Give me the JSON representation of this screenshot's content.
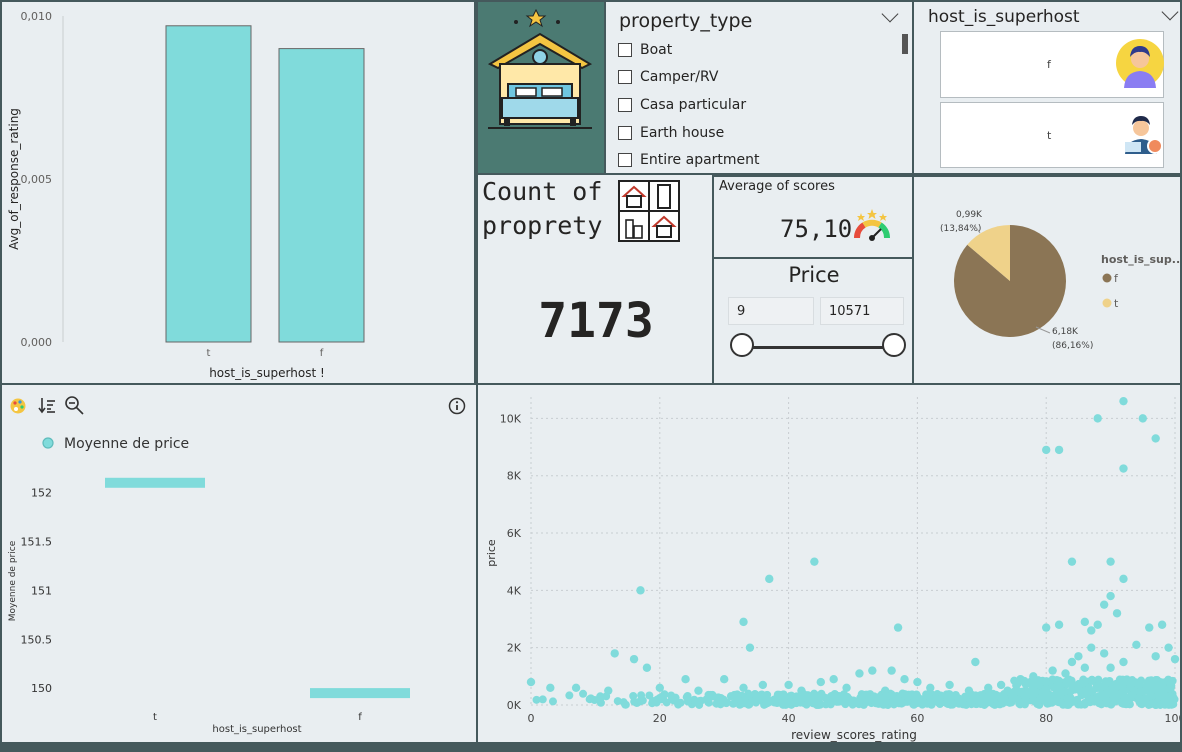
{
  "colors": {
    "teal": "#80dbdb",
    "border": "#45595c",
    "bg": "#e9eef1",
    "pie_f": "#8b7555",
    "pie_t": "#efd28a",
    "house_tile": "#4b7a72"
  },
  "bar_chart": {
    "chart_data": {
      "type": "bar",
      "categories": [
        "t",
        "f"
      ],
      "values": [
        0.0097,
        0.009
      ],
      "xlabel": "host_is_superhost",
      "ylabel": "Avg_of_response_rating",
      "ylim": [
        0,
        0.01
      ],
      "yticks": [
        "0,000",
        "0,005",
        "0,010"
      ]
    },
    "xlabel_suffix": "!"
  },
  "property_slicer": {
    "title": "property_type",
    "items": [
      "Boat",
      "Camper/RV",
      "Casa particular",
      "Earth house",
      "Entire apartment"
    ]
  },
  "superhost_slicer": {
    "title": "host_is_superhost",
    "tiles": [
      "f",
      "t"
    ]
  },
  "count_card": {
    "title_line1": "Count of",
    "title_line2": "proprety",
    "value": "7173"
  },
  "avg_card": {
    "title": "Average of scores",
    "value": "75,10"
  },
  "price_slicer": {
    "title": "Price",
    "min": "9",
    "max": "10571"
  },
  "pie_chart": {
    "chart_data": {
      "type": "pie",
      "legend_title": "host_is_sup...",
      "legend": [
        "f",
        "t"
      ],
      "values": [
        6.18,
        0.99
      ],
      "labels": [
        {
          "line1": "0,99K",
          "line2": "(13,84%)"
        },
        {
          "line1": "6,18K",
          "line2": "(86,16%)"
        }
      ]
    }
  },
  "error_bar_chart": {
    "icons": [
      "palette-icon",
      "sort-icon",
      "zoom-icon",
      "info-icon"
    ],
    "chart_data": {
      "type": "bar",
      "legend": "Moyenne de price",
      "ylabel": "Moyenne de price",
      "xlabel": "host_is_superhost",
      "categories": [
        "t",
        "f"
      ],
      "values": [
        152.1,
        149.95
      ],
      "yticks": [
        "152",
        "151.5",
        "151",
        "150.5",
        "150"
      ],
      "ylim": [
        149.9,
        152.2
      ]
    }
  },
  "scatter_chart": {
    "chart_data": {
      "type": "scatter",
      "xlabel": "review_scores_rating",
      "ylabel": "price",
      "xticks": [
        "0",
        "20",
        "40",
        "60",
        "80",
        "100"
      ],
      "yticks": [
        "0K",
        "2K",
        "4K",
        "6K",
        "8K",
        "10K"
      ],
      "xlim": [
        0,
        100
      ],
      "ylim": [
        0,
        10571
      ],
      "points": [
        [
          80,
          8900
        ],
        [
          82,
          8900
        ],
        [
          88,
          10000
        ],
        [
          92,
          10600
        ],
        [
          95,
          10000
        ],
        [
          97,
          9300
        ],
        [
          92,
          8250
        ],
        [
          84,
          5000
        ],
        [
          90,
          5000
        ],
        [
          92,
          4400
        ],
        [
          37,
          4400
        ],
        [
          44,
          5000
        ],
        [
          17,
          4000
        ],
        [
          33,
          2900
        ],
        [
          57,
          2700
        ],
        [
          34,
          2000
        ],
        [
          16,
          1600
        ],
        [
          13,
          1800
        ],
        [
          18,
          1300
        ],
        [
          89,
          3500
        ],
        [
          90,
          3800
        ],
        [
          91,
          3200
        ],
        [
          86,
          2900
        ],
        [
          88,
          2800
        ],
        [
          87,
          2600
        ],
        [
          80,
          2700
        ],
        [
          82,
          2800
        ],
        [
          96,
          2700
        ],
        [
          98,
          2800
        ],
        [
          94,
          2100
        ],
        [
          89,
          1800
        ],
        [
          92,
          1500
        ],
        [
          97,
          1700
        ],
        [
          99,
          2000
        ],
        [
          100,
          1600
        ],
        [
          87,
          2000
        ],
        [
          85,
          1700
        ],
        [
          84,
          1500
        ],
        [
          86,
          1300
        ],
        [
          90,
          1300
        ],
        [
          81,
          1200
        ],
        [
          83,
          1100
        ],
        [
          69,
          1500
        ],
        [
          56,
          1200
        ],
        [
          58,
          900
        ],
        [
          47,
          900
        ],
        [
          53,
          1200
        ],
        [
          51,
          1100
        ],
        [
          24,
          900
        ],
        [
          30,
          900
        ],
        [
          45,
          800
        ],
        [
          40,
          700
        ],
        [
          60,
          800
        ],
        [
          65,
          700
        ],
        [
          73,
          700
        ],
        [
          76,
          900
        ],
        [
          78,
          1000
        ],
        [
          3,
          600
        ],
        [
          7,
          600
        ],
        [
          12,
          500
        ],
        [
          20,
          600
        ],
        [
          26,
          500
        ],
        [
          33,
          600
        ],
        [
          36,
          700
        ],
        [
          42,
          500
        ],
        [
          49,
          600
        ],
        [
          55,
          500
        ],
        [
          62,
          600
        ],
        [
          68,
          500
        ],
        [
          71,
          600
        ],
        [
          74,
          500
        ],
        [
          79,
          700
        ],
        [
          0,
          800
        ]
      ]
    }
  }
}
